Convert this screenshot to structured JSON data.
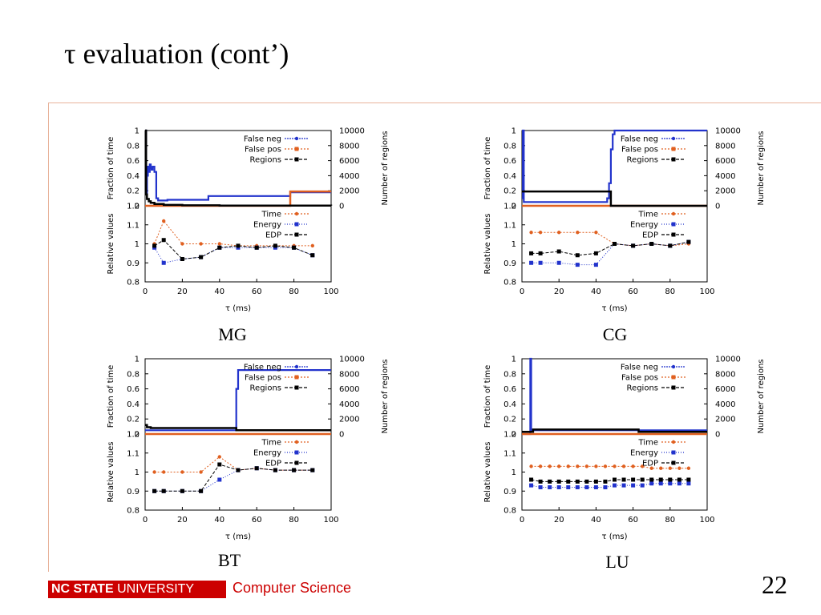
{
  "slide": {
    "title": "τ evaluation (cont’)",
    "page_number": "22"
  },
  "footer": {
    "university_bold": "NC STATE",
    "university_rest": " UNIVERSITY",
    "department": "Computer Science"
  },
  "colors": {
    "false_neg": "#2233cc",
    "false_pos": "#e06020",
    "regions": "#000000",
    "time": "#e06020",
    "energy": "#2233cc",
    "edp": "#000000",
    "accent": "#cc0000"
  },
  "chart_data": [
    {
      "caption": "MG",
      "type": "line",
      "top": {
        "ylabel": "Fraction of time",
        "y2label": "Number of regions",
        "ylim": [
          0,
          1
        ],
        "y2lim": [
          0,
          10000
        ],
        "yticks": [
          "0",
          "0.2",
          "0.4",
          "0.6",
          "0.8",
          "1"
        ],
        "y2ticks": [
          "0",
          "2000",
          "4000",
          "6000",
          "8000",
          "10000"
        ],
        "legend": [
          "False neg",
          "False pos",
          "Regions"
        ],
        "false_neg": [
          [
            0,
            1.0
          ],
          [
            0.5,
            0.15
          ],
          [
            1,
            0.4
          ],
          [
            1.5,
            0.52
          ],
          [
            2,
            0.45
          ],
          [
            2.5,
            0.55
          ],
          [
            3,
            0.5
          ],
          [
            3.5,
            0.48
          ],
          [
            4,
            0.52
          ],
          [
            5,
            0.45
          ],
          [
            6,
            0.1
          ],
          [
            7,
            0.07
          ],
          [
            10,
            0.07
          ],
          [
            12,
            0.08
          ],
          [
            33,
            0.08
          ],
          [
            34,
            0.13
          ],
          [
            77,
            0.13
          ],
          [
            78,
            0.18
          ],
          [
            100,
            0.18
          ]
        ],
        "false_pos": [
          [
            0,
            0.0
          ],
          [
            77,
            0.0
          ],
          [
            78,
            0.19
          ],
          [
            100,
            0.19
          ]
        ],
        "regions": [
          [
            0,
            10000
          ],
          [
            0.5,
            1500
          ],
          [
            1,
            900
          ],
          [
            2,
            600
          ],
          [
            3,
            400
          ],
          [
            5,
            250
          ],
          [
            10,
            120
          ],
          [
            20,
            60
          ],
          [
            40,
            30
          ],
          [
            100,
            20
          ]
        ]
      },
      "bottom": {
        "ylabel": "Relative values",
        "xlabel": "τ (ms)",
        "xlim": [
          0,
          100
        ],
        "ylim": [
          0.8,
          1.2
        ],
        "xticks": [
          "0",
          "20",
          "40",
          "60",
          "80",
          "100"
        ],
        "yticks": [
          "0.8",
          "0.9",
          "1",
          "1.1",
          "1.2"
        ],
        "legend": [
          "Time",
          "Energy",
          "EDP"
        ],
        "x": [
          5,
          10,
          20,
          30,
          40,
          50,
          60,
          70,
          80,
          90
        ],
        "time": [
          1.0,
          1.12,
          1.0,
          1.0,
          1.0,
          0.99,
          0.99,
          0.99,
          0.99,
          0.99
        ],
        "energy": [
          0.98,
          0.9,
          0.92,
          0.93,
          0.98,
          0.98,
          0.98,
          0.98,
          0.98,
          0.94
        ],
        "edp": [
          0.99,
          1.02,
          0.92,
          0.93,
          0.98,
          0.99,
          0.98,
          0.99,
          0.98,
          0.94
        ]
      }
    },
    {
      "caption": "CG",
      "type": "line",
      "top": {
        "ylabel": "Fraction of time",
        "y2label": "Number of regions",
        "ylim": [
          0,
          1
        ],
        "y2lim": [
          0,
          10000
        ],
        "yticks": [
          "0",
          "0.2",
          "0.4",
          "0.6",
          "0.8",
          "1"
        ],
        "y2ticks": [
          "0",
          "2000",
          "4000",
          "6000",
          "8000",
          "10000"
        ],
        "legend": [
          "False neg",
          "False pos",
          "Regions"
        ],
        "false_neg": [
          [
            0,
            0.1
          ],
          [
            0.5,
            1.0
          ],
          [
            1,
            0.05
          ],
          [
            45,
            0.05
          ],
          [
            46,
            0.1
          ],
          [
            47,
            0.3
          ],
          [
            48,
            0.75
          ],
          [
            49,
            0.95
          ],
          [
            50,
            1.0
          ],
          [
            100,
            1.0
          ]
        ],
        "false_pos": [
          [
            0,
            0.0
          ],
          [
            100,
            0.0
          ]
        ],
        "regions": [
          [
            0,
            1900
          ],
          [
            47,
            1900
          ],
          [
            48,
            0
          ],
          [
            100,
            0
          ]
        ]
      },
      "bottom": {
        "ylabel": "Relative values",
        "xlabel": "τ (ms)",
        "xlim": [
          0,
          100
        ],
        "ylim": [
          0.8,
          1.2
        ],
        "xticks": [
          "0",
          "20",
          "40",
          "60",
          "80",
          "100"
        ],
        "yticks": [
          "0.8",
          "0.9",
          "1",
          "1.1",
          "1.2"
        ],
        "legend": [
          "Time",
          "Energy",
          "EDP"
        ],
        "x": [
          5,
          10,
          20,
          30,
          40,
          50,
          60,
          70,
          80,
          90
        ],
        "time": [
          1.06,
          1.06,
          1.06,
          1.06,
          1.06,
          1.0,
          0.99,
          1.0,
          0.99,
          1.0
        ],
        "energy": [
          0.9,
          0.9,
          0.9,
          0.89,
          0.89,
          1.0,
          0.99,
          1.0,
          0.99,
          1.01
        ],
        "edp": [
          0.95,
          0.95,
          0.96,
          0.94,
          0.95,
          1.0,
          0.99,
          1.0,
          0.99,
          1.01
        ]
      }
    },
    {
      "caption": "BT",
      "type": "line",
      "top": {
        "ylabel": "Fraction of time",
        "y2label": "Number of regions",
        "ylim": [
          0,
          1
        ],
        "y2lim": [
          0,
          10000
        ],
        "yticks": [
          "0",
          "0.2",
          "0.4",
          "0.6",
          "0.8",
          "1"
        ],
        "y2ticks": [
          "0",
          "2000",
          "4000",
          "6000",
          "8000",
          "10000"
        ],
        "legend": [
          "False neg",
          "False pos",
          "Regions"
        ],
        "false_neg": [
          [
            0,
            0.05
          ],
          [
            48,
            0.05
          ],
          [
            49,
            0.6
          ],
          [
            50,
            0.85
          ],
          [
            100,
            0.85
          ]
        ],
        "false_pos": [
          [
            0,
            0.0
          ],
          [
            100,
            0.0
          ]
        ],
        "regions": [
          [
            0,
            1200
          ],
          [
            1,
            900
          ],
          [
            3,
            800
          ],
          [
            48,
            800
          ],
          [
            49,
            500
          ],
          [
            100,
            500
          ]
        ]
      },
      "bottom": {
        "ylabel": "Relative values",
        "xlabel": "τ (ms)",
        "xlim": [
          0,
          100
        ],
        "ylim": [
          0.8,
          1.2
        ],
        "xticks": [
          "0",
          "20",
          "40",
          "60",
          "80",
          "100"
        ],
        "yticks": [
          "0.8",
          "0.9",
          "1",
          "1.1",
          "1.2"
        ],
        "legend": [
          "Time",
          "Energy",
          "EDP"
        ],
        "x": [
          5,
          10,
          20,
          30,
          40,
          50,
          60,
          70,
          80,
          90
        ],
        "time": [
          1.0,
          1.0,
          1.0,
          1.0,
          1.08,
          1.01,
          1.02,
          1.01,
          1.01,
          1.01
        ],
        "energy": [
          0.9,
          0.9,
          0.9,
          0.9,
          0.96,
          1.01,
          1.02,
          1.01,
          1.01,
          1.01
        ],
        "edp": [
          0.9,
          0.9,
          0.9,
          0.9,
          1.04,
          1.01,
          1.02,
          1.01,
          1.01,
          1.01
        ]
      }
    },
    {
      "caption": "LU",
      "type": "line",
      "top": {
        "ylabel": "Fraction of time",
        "y2label": "Number of regions",
        "ylim": [
          0,
          1
        ],
        "y2lim": [
          0,
          10000
        ],
        "yticks": [
          "0",
          "0.2",
          "0.4",
          "0.6",
          "0.8",
          "1"
        ],
        "y2ticks": [
          "0",
          "2000",
          "4000",
          "6000",
          "8000",
          "10000"
        ],
        "legend": [
          "False neg",
          "False pos",
          "Regions"
        ],
        "false_neg": [
          [
            0,
            0.0
          ],
          [
            4,
            0.0
          ],
          [
            4.5,
            1.0
          ],
          [
            5,
            0.05
          ],
          [
            100,
            0.05
          ]
        ],
        "false_pos": [
          [
            0,
            0.0
          ],
          [
            100,
            0.0
          ]
        ],
        "regions": [
          [
            0,
            300
          ],
          [
            5,
            300
          ],
          [
            6,
            600
          ],
          [
            62,
            600
          ],
          [
            63,
            300
          ],
          [
            100,
            300
          ]
        ]
      },
      "bottom": {
        "ylabel": "Relative values",
        "xlabel": "τ (ms)",
        "xlim": [
          0,
          100
        ],
        "ylim": [
          0.8,
          1.2
        ],
        "xticks": [
          "0",
          "20",
          "40",
          "60",
          "80",
          "100"
        ],
        "yticks": [
          "0.8",
          "0.9",
          "1",
          "1.1",
          "1.2"
        ],
        "legend": [
          "Time",
          "Energy",
          "EDP"
        ],
        "x": [
          5,
          10,
          15,
          20,
          25,
          30,
          35,
          40,
          45,
          50,
          55,
          60,
          65,
          70,
          75,
          80,
          85,
          90
        ],
        "time": [
          1.03,
          1.03,
          1.03,
          1.03,
          1.03,
          1.03,
          1.03,
          1.03,
          1.03,
          1.03,
          1.03,
          1.03,
          1.03,
          1.02,
          1.02,
          1.02,
          1.02,
          1.02
        ],
        "energy": [
          0.93,
          0.92,
          0.92,
          0.92,
          0.92,
          0.92,
          0.92,
          0.92,
          0.92,
          0.93,
          0.93,
          0.93,
          0.93,
          0.94,
          0.94,
          0.94,
          0.94,
          0.94
        ],
        "edp": [
          0.96,
          0.95,
          0.95,
          0.95,
          0.95,
          0.95,
          0.95,
          0.95,
          0.95,
          0.96,
          0.96,
          0.96,
          0.96,
          0.96,
          0.96,
          0.96,
          0.96,
          0.96
        ]
      }
    }
  ]
}
